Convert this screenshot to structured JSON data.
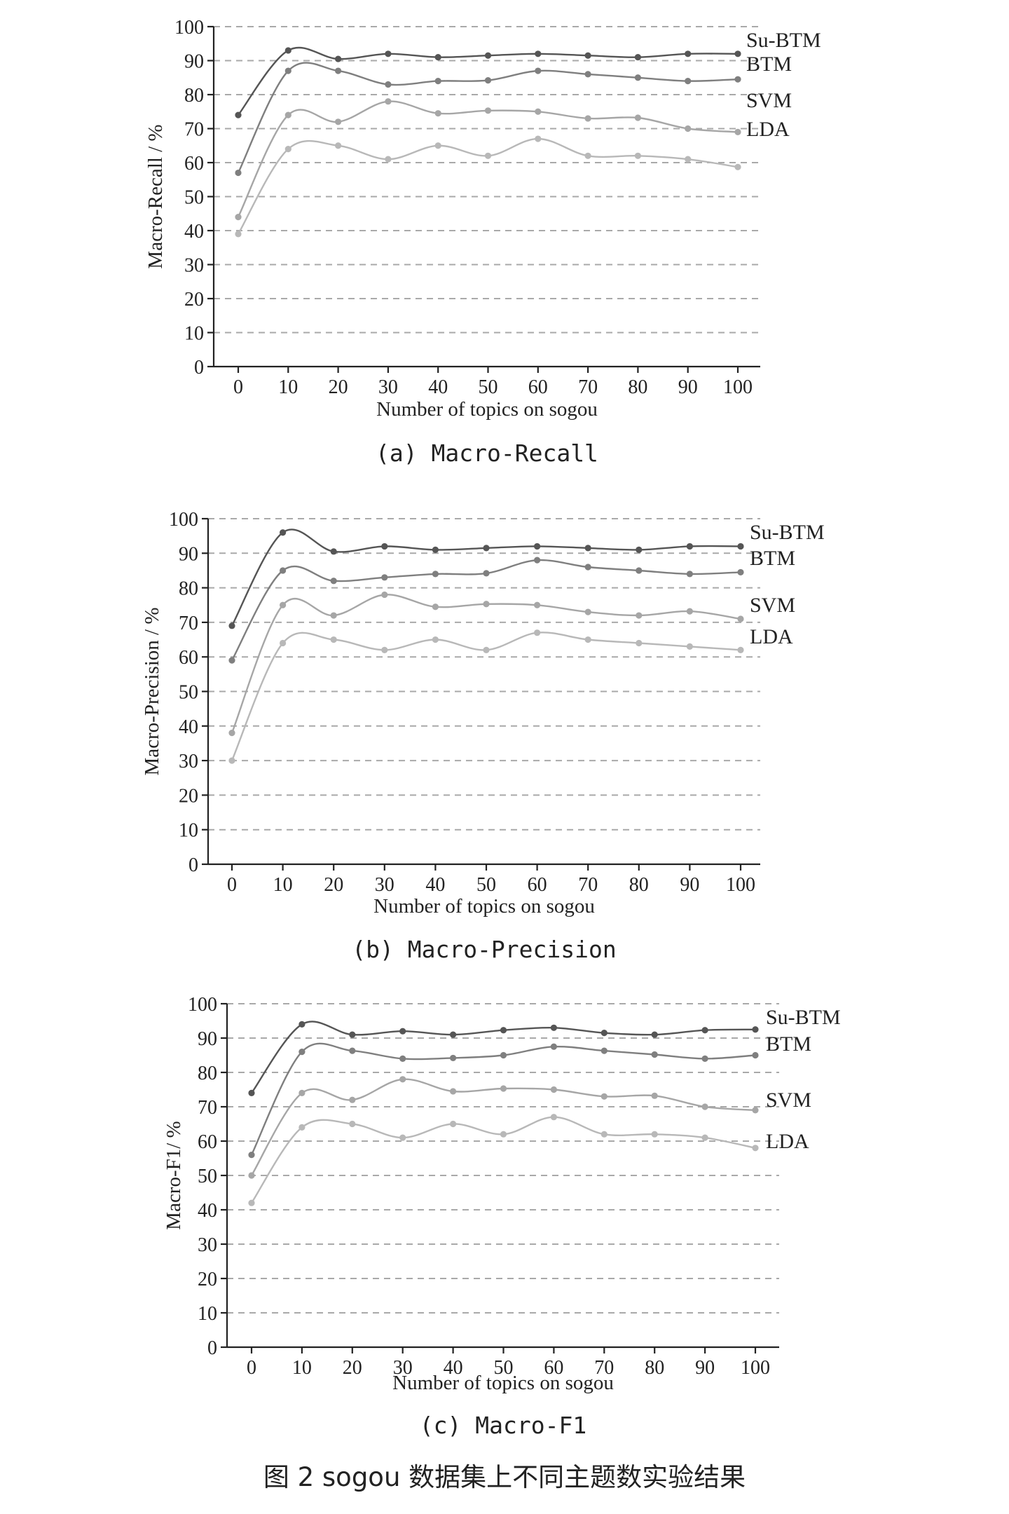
{
  "figure_caption": "图 2   sogou 数据集上不同主题数实验结果",
  "colors": {
    "Su-BTM": "#555555",
    "BTM": "#7f7f7f",
    "SVM": "#a6a6a6",
    "LDA": "#b8b8b8",
    "grid": "#a9a9a9",
    "axis": "#222222"
  },
  "chart_data": [
    {
      "type": "line",
      "caption": "(a) Macro-Recall",
      "xlabel": "Number of topics on sogou",
      "ylabel": "Macro-Recall / %",
      "x": [
        0,
        10,
        20,
        30,
        40,
        50,
        60,
        70,
        80,
        90,
        100
      ],
      "ylim": [
        0,
        100
      ],
      "yticks": [
        0,
        10,
        20,
        30,
        40,
        50,
        60,
        70,
        80,
        90,
        100
      ],
      "grid": "horizontal-dashed",
      "series": [
        {
          "name": "Su-BTM",
          "values": [
            74,
            93,
            90.5,
            92,
            91,
            91.5,
            92,
            91.5,
            91,
            92,
            92
          ]
        },
        {
          "name": "BTM",
          "values": [
            57,
            87,
            87,
            83,
            84,
            84.2,
            87,
            86,
            85,
            84,
            84.5
          ]
        },
        {
          "name": "SVM",
          "values": [
            44,
            74,
            72,
            78,
            74.5,
            75.3,
            75,
            73,
            73.2,
            70,
            69
          ]
        },
        {
          "name": "LDA",
          "values": [
            39,
            64,
            65,
            61,
            65,
            62,
            67,
            62,
            62,
            61,
            58.7
          ]
        }
      ]
    },
    {
      "type": "line",
      "caption": "(b) Macro-Precision",
      "xlabel": "Number of topics on sogou",
      "ylabel": "Macro-Precision / %",
      "x": [
        0,
        10,
        20,
        30,
        40,
        50,
        60,
        70,
        80,
        90,
        100
      ],
      "ylim": [
        0,
        100
      ],
      "yticks": [
        0,
        10,
        20,
        30,
        40,
        50,
        60,
        70,
        80,
        90,
        100
      ],
      "grid": "horizontal-dashed",
      "series": [
        {
          "name": "Su-BTM",
          "values": [
            69,
            96,
            90.5,
            92,
            91,
            91.5,
            92,
            91.5,
            91,
            92,
            92
          ]
        },
        {
          "name": "BTM",
          "values": [
            59,
            85,
            82,
            83,
            84,
            84.2,
            88,
            86,
            85,
            84,
            84.5
          ]
        },
        {
          "name": "SVM",
          "values": [
            38,
            75,
            72,
            78,
            74.5,
            75.3,
            75,
            73,
            72,
            73.2,
            71
          ]
        },
        {
          "name": "LDA",
          "values": [
            30,
            64,
            65,
            62,
            65,
            62,
            67,
            65,
            64,
            63,
            62
          ]
        }
      ]
    },
    {
      "type": "line",
      "caption": "(c) Macro-F1",
      "xlabel": "Number of topics on sogou",
      "ylabel": "Macro-F1/ %",
      "x": [
        0,
        10,
        20,
        30,
        40,
        50,
        60,
        70,
        80,
        90,
        100
      ],
      "ylim": [
        0,
        100
      ],
      "yticks": [
        0,
        10,
        20,
        30,
        40,
        50,
        60,
        70,
        80,
        90,
        100
      ],
      "grid": "horizontal-dashed",
      "series": [
        {
          "name": "Su-BTM",
          "values": [
            74,
            94,
            91,
            92,
            91,
            92.3,
            93,
            91.5,
            91,
            92.3,
            92.5
          ]
        },
        {
          "name": "BTM",
          "values": [
            56,
            86,
            86.3,
            84,
            84.2,
            85,
            87.5,
            86.3,
            85.2,
            84,
            85
          ]
        },
        {
          "name": "SVM",
          "values": [
            50,
            74,
            72,
            78,
            74.5,
            75.3,
            75,
            73,
            73.2,
            70,
            69
          ]
        },
        {
          "name": "LDA",
          "values": [
            42,
            64,
            65,
            61,
            65,
            62,
            67,
            62,
            62,
            61,
            58
          ]
        }
      ]
    }
  ]
}
